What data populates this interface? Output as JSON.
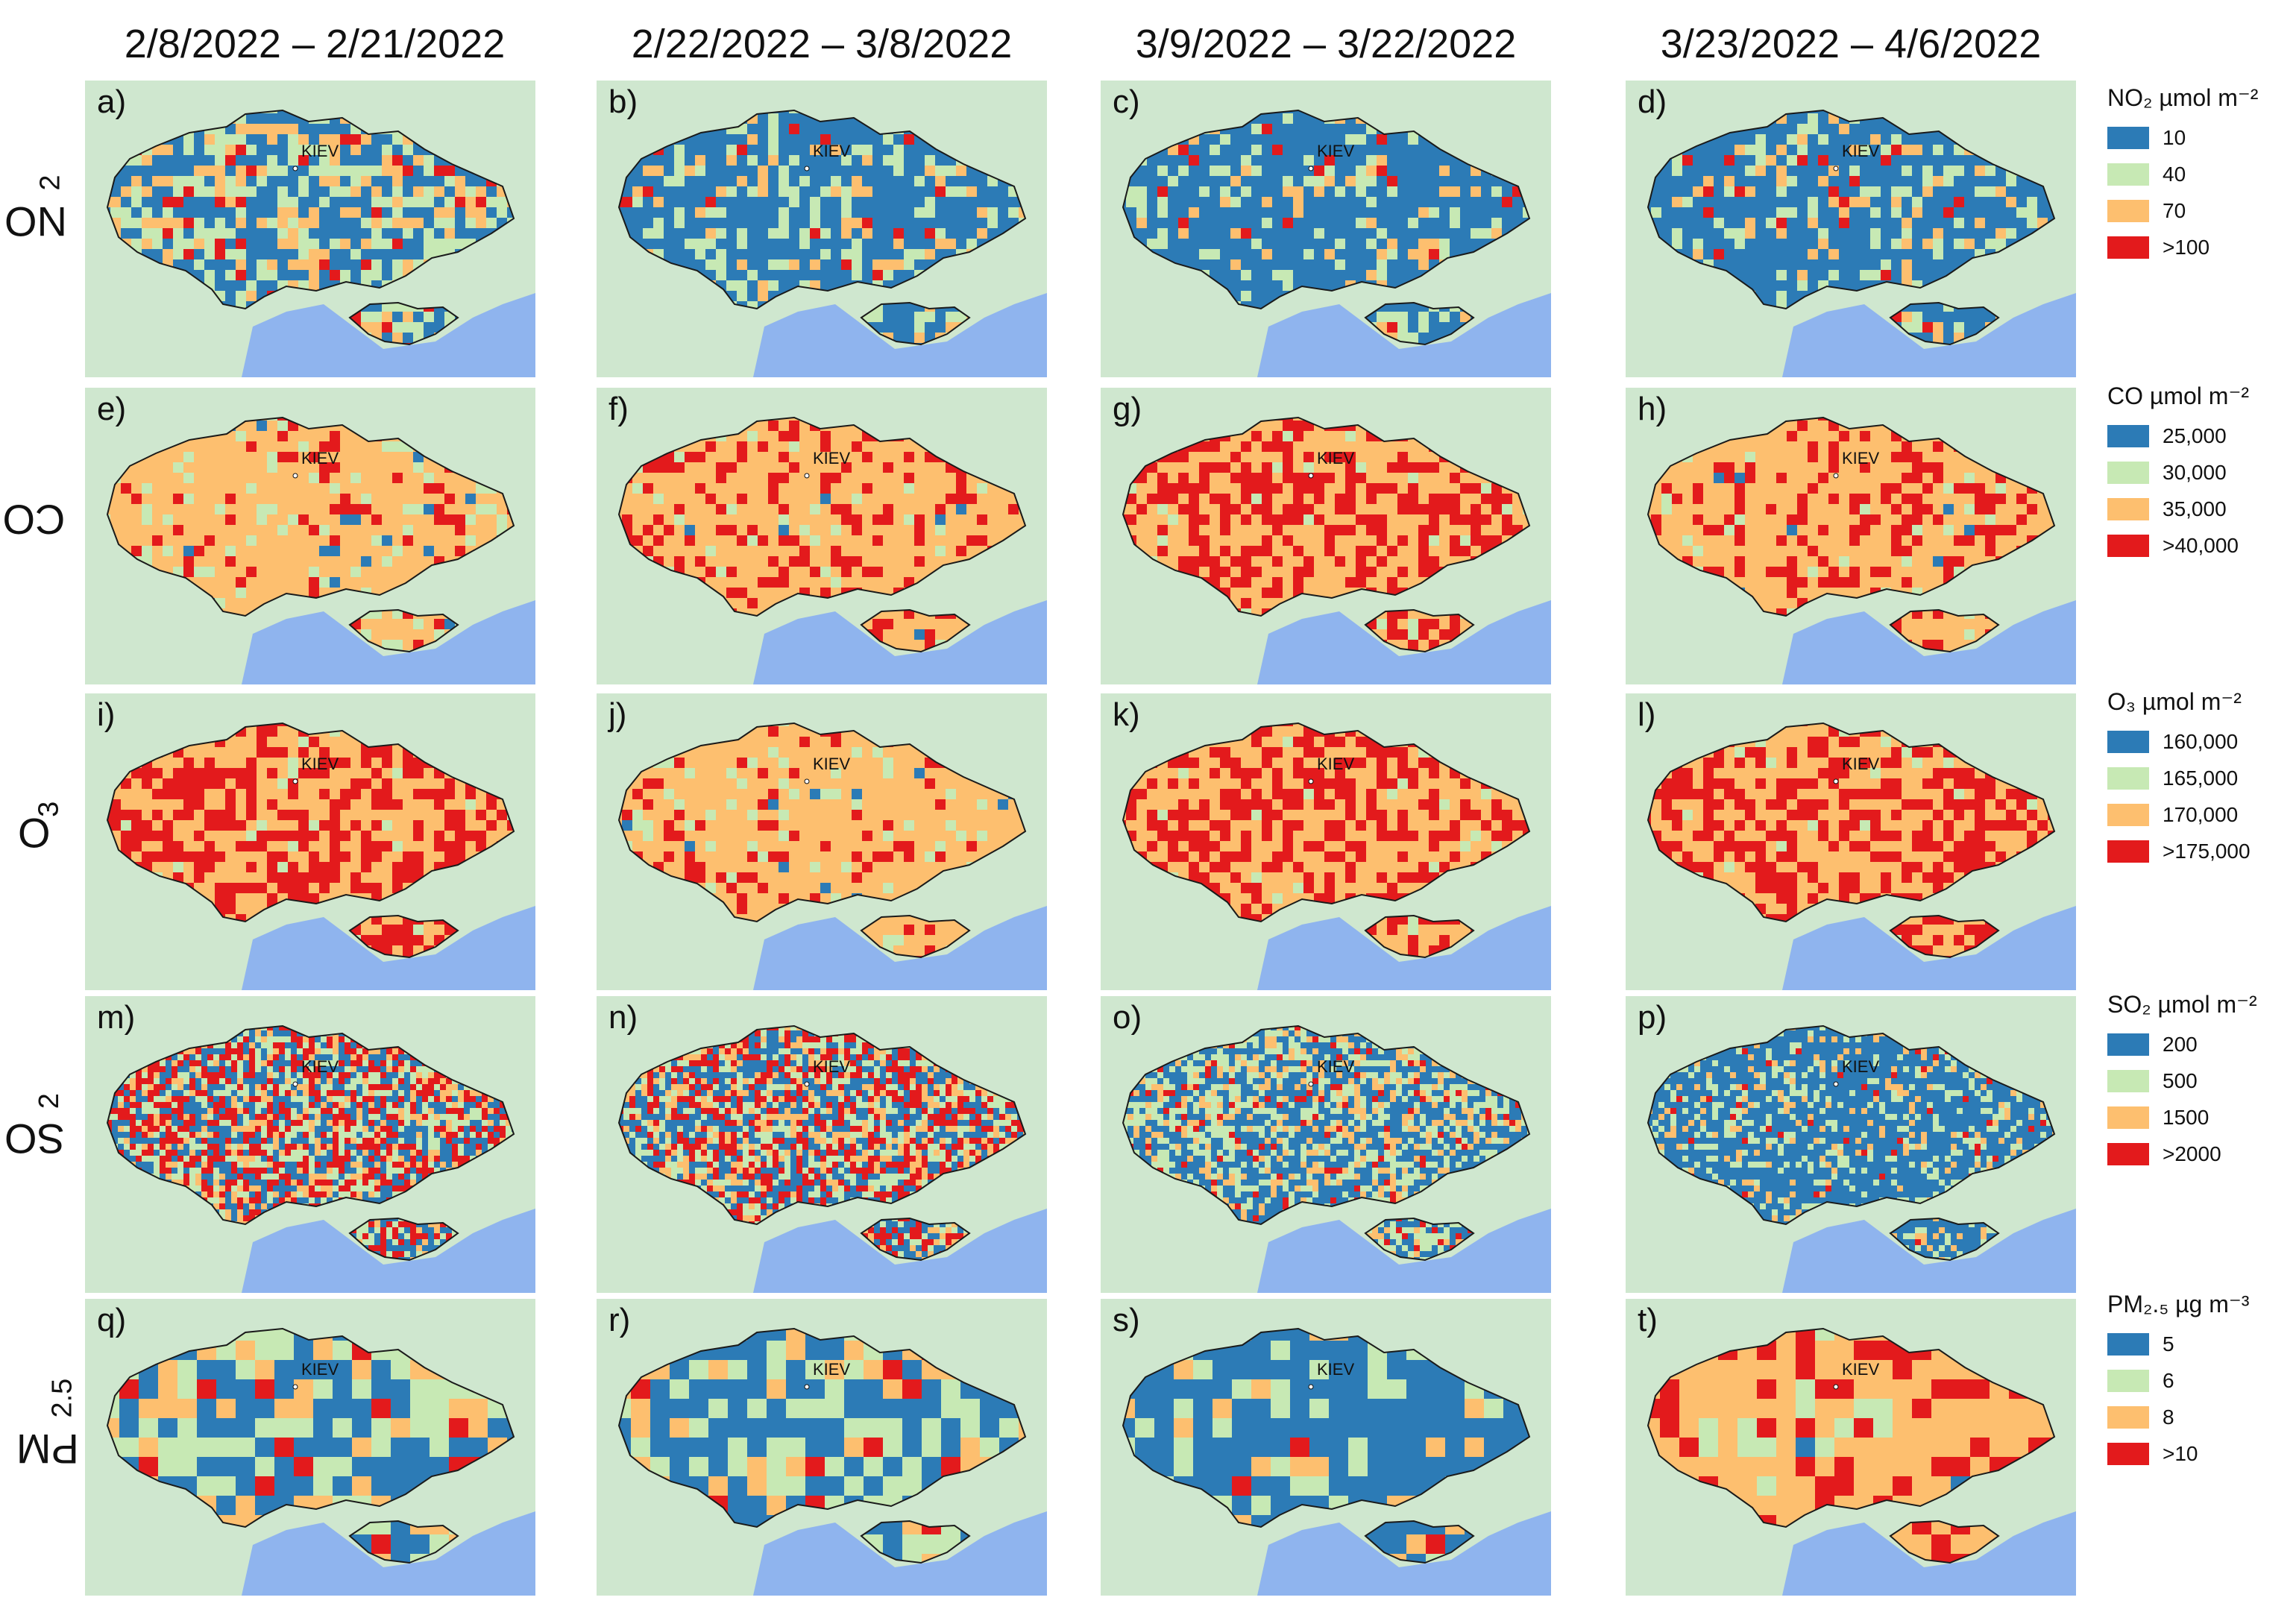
{
  "columns": [
    "2/8/2022 – 2/21/2022",
    "2/22/2022 – 3/8/2022",
    "3/9/2022 – 3/22/2022",
    "3/23/2022 – 4/6/2022"
  ],
  "rows": [
    {
      "label_main": "NO",
      "label_sub": "2"
    },
    {
      "label_main": "CO",
      "label_sub": ""
    },
    {
      "label_main": "O",
      "label_sub": "3"
    },
    {
      "label_main": "SO",
      "label_sub": "2"
    },
    {
      "label_main": "PM",
      "label_sub": "2.5"
    }
  ],
  "city_label": "KIEV",
  "panels": [
    [
      "a)",
      "b)",
      "c)",
      "d)"
    ],
    [
      "e)",
      "f)",
      "g)",
      "h)"
    ],
    [
      "i)",
      "j)",
      "k)",
      "l)"
    ],
    [
      "m)",
      "n)",
      "o)",
      "p)"
    ],
    [
      "q)",
      "r)",
      "s)",
      "t)"
    ]
  ],
  "panel_levels": [
    [
      "low",
      "lowest",
      "lowest",
      "lowest"
    ],
    [
      "mid",
      "mid-high",
      "high",
      "mid-high"
    ],
    [
      "high",
      "mid",
      "high",
      "high"
    ],
    [
      "mixed",
      "mixed",
      "low",
      "lowest"
    ],
    [
      "low",
      "low",
      "lowest",
      "mid-high"
    ]
  ],
  "legends": [
    {
      "title": "NO₂ µmol m⁻²",
      "items": [
        "10",
        "40",
        "70",
        ">100"
      ]
    },
    {
      "title": "CO µmol m⁻²",
      "items": [
        "25,000",
        "30,000",
        "35,000",
        ">40,000"
      ]
    },
    {
      "title": "O₃ µmol m⁻²",
      "items": [
        "160,000",
        "165,000",
        "170,000",
        ">175,000"
      ]
    },
    {
      "title": "SO₂ µmol m⁻²",
      "items": [
        "200",
        "500",
        "1500",
        ">2000"
      ]
    },
    {
      "title": "PM₂.₅ µg m⁻³",
      "items": [
        "5",
        "6",
        "8",
        ">10"
      ]
    }
  ],
  "colors": {
    "scale": [
      "#2c7bb6",
      "#c7e9b4",
      "#fdbf6f",
      "#e31a1c"
    ],
    "land": "#cfe7cf",
    "sea": "#8fb4ee",
    "border": "#1a1a1a"
  }
}
